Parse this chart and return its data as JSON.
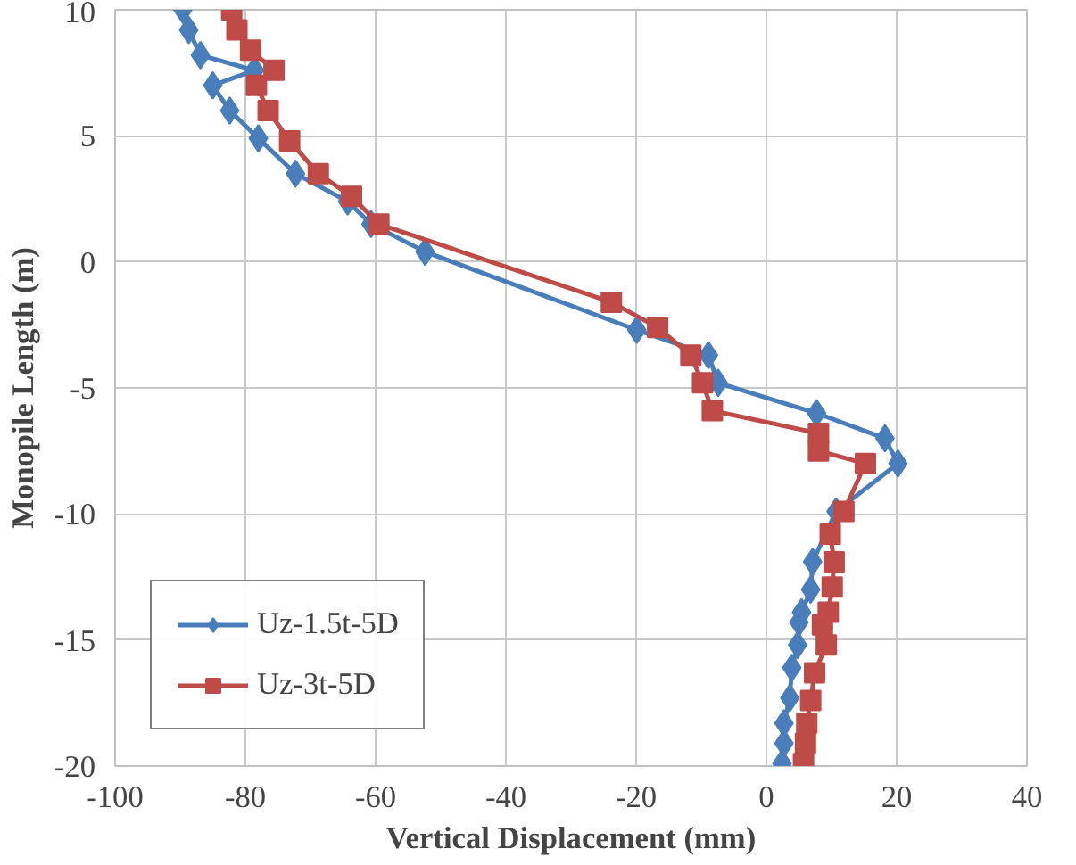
{
  "chart_data": {
    "type": "line",
    "xlabel": "Vertical Displacement (mm)",
    "ylabel": "Monopile Length (m)",
    "xlim": [
      -100,
      40
    ],
    "xticks": [
      -100,
      -80,
      -60,
      -40,
      -20,
      0,
      20,
      40
    ],
    "ylim": [
      -20,
      10
    ],
    "yticks": [
      -20,
      -15,
      -10,
      -5,
      0,
      5,
      10
    ],
    "grid": true,
    "legend": "bottom left",
    "line_style": "solid",
    "series": [
      {
        "name": "Uz-1.5t-5D",
        "color": "#4a7ebb",
        "marker": "diamond",
        "x": [
          -89.6,
          -88.7,
          -86.9,
          -78.6,
          -85,
          -82.4,
          -78,
          -72.3,
          -64.3,
          -60.7,
          -52.4,
          -19.9,
          -8.9,
          -7.4,
          7.7,
          18.2,
          20.2,
          10.7,
          7.1,
          6.8,
          5.4,
          5,
          4.8,
          3.9,
          3.6,
          2.7,
          2.7,
          2.4
        ],
        "values": [
          10,
          9.2,
          8.2,
          7.6,
          7,
          6,
          4.9,
          3.5,
          2.4,
          1.5,
          0.4,
          -2.7,
          -3.7,
          -4.8,
          -6,
          -7,
          -8,
          -9.9,
          -11.9,
          -13,
          -13.9,
          -14.3,
          -15.2,
          -16.1,
          -17.3,
          -18.3,
          -19.1,
          -19.9
        ]
      },
      {
        "name": "Uz-3t-5D",
        "color": "#be4b48",
        "marker": "square",
        "x": [
          -82.1,
          -81.3,
          -79.2,
          -75.6,
          -78.3,
          -76.5,
          -73.2,
          -68.8,
          -63.7,
          -59.5,
          -23.8,
          -16.7,
          -11.6,
          -9.8,
          -8.3,
          8,
          8,
          15.2,
          11.9,
          9.8,
          10.4,
          10.1,
          9.5,
          8.6,
          9.2,
          7.4,
          6.8,
          6.2,
          6,
          5.7
        ],
        "values": [
          10,
          9.2,
          8.4,
          7.6,
          7,
          6,
          4.8,
          3.5,
          2.6,
          1.5,
          -1.6,
          -2.6,
          -3.7,
          -4.8,
          -5.9,
          -6.8,
          -7.5,
          -8,
          -9.9,
          -10.8,
          -11.9,
          -12.9,
          -13.9,
          -14.4,
          -15.2,
          -16.3,
          -17.4,
          -18.3,
          -19.1,
          -19.9
        ]
      }
    ]
  }
}
